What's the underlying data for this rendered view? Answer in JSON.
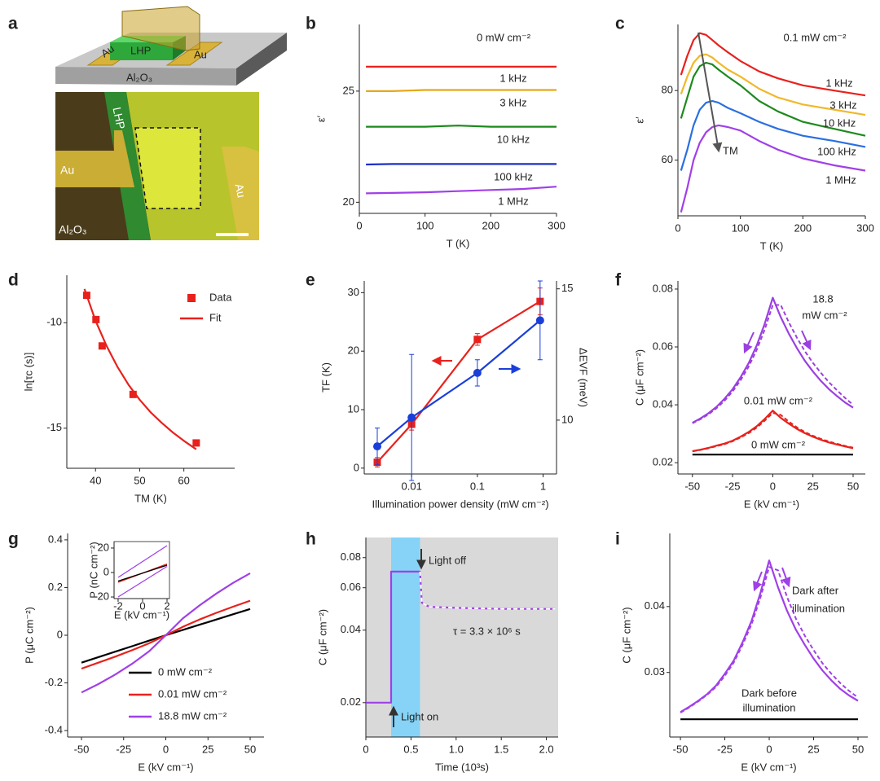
{
  "panel_a": {
    "panel": "a",
    "device_labels": [
      "Au",
      "LHP",
      "Au",
      "Al₂O₃"
    ],
    "micrograph_labels": [
      "LHP",
      "Au",
      "Au",
      "Al₂O₃"
    ]
  },
  "chart_data": [
    {
      "panel": "b",
      "type": "line",
      "xlabel": "T (K)",
      "ylabel": "ε′",
      "xlim": [
        0,
        300
      ],
      "ylim": [
        19.5,
        28
      ],
      "xticks": [
        0,
        100,
        200,
        300
      ],
      "yticks": [
        20,
        25
      ],
      "labels": "inline",
      "annotations": [
        "0 mW cm⁻²"
      ],
      "x": [
        10,
        50,
        100,
        150,
        200,
        250,
        300
      ],
      "series": [
        {
          "name": "1 kHz",
          "color": "#e8211d",
          "values": [
            26.1,
            26.1,
            26.1,
            26.1,
            26.1,
            26.1,
            26.1
          ]
        },
        {
          "name": "3 kHz",
          "color": "#e6a817",
          "values": [
            25.0,
            25.0,
            25.05,
            25.05,
            25.05,
            25.05,
            25.05
          ]
        },
        {
          "name": "10 kHz",
          "color": "#1c8a1c",
          "values": [
            23.4,
            23.4,
            23.4,
            23.45,
            23.4,
            23.4,
            23.4
          ]
        },
        {
          "name": "100 kHz",
          "color": "#1a2fc9",
          "values": [
            21.7,
            21.72,
            21.72,
            21.72,
            21.72,
            21.72,
            21.72
          ]
        },
        {
          "name": "1 MHz",
          "color": "#a040e8",
          "values": [
            20.4,
            20.42,
            20.45,
            20.5,
            20.55,
            20.6,
            20.7
          ]
        }
      ]
    },
    {
      "panel": "c",
      "type": "line",
      "xlabel": "T (K)",
      "ylabel": "ε′",
      "xlim": [
        0,
        300
      ],
      "ylim": [
        44,
        99
      ],
      "xticks": [
        0,
        100,
        200,
        300
      ],
      "yticks": [
        60,
        80
      ],
      "labels": "inline",
      "annotations": [
        "0.1 mW cm⁻²",
        "TM"
      ],
      "x": [
        5,
        15,
        25,
        35,
        45,
        55,
        65,
        80,
        100,
        130,
        160,
        200,
        250,
        300
      ],
      "series": [
        {
          "name": "1 kHz",
          "color": "#e8211d",
          "values": [
            84.5,
            90,
            94.5,
            96.5,
            96,
            94.5,
            93,
            91,
            88.5,
            85.5,
            83.5,
            81.5,
            80,
            78.6
          ]
        },
        {
          "name": "3 kHz",
          "color": "#f0b82a",
          "values": [
            79,
            84,
            88,
            90,
            90.4,
            89.5,
            88,
            86,
            84,
            80.5,
            78,
            76,
            74.5,
            73
          ]
        },
        {
          "name": "10 kHz",
          "color": "#1c8a1c",
          "values": [
            72,
            78,
            84,
            87,
            88,
            87.5,
            86,
            84,
            81.5,
            77,
            74,
            71,
            69,
            67
          ]
        },
        {
          "name": "100 kHz",
          "color": "#2a6fe0",
          "values": [
            57,
            63,
            70,
            74.5,
            76.5,
            77,
            76.5,
            75,
            73.5,
            71,
            69,
            67,
            65.5,
            63.8
          ]
        },
        {
          "name": "1 MHz",
          "color": "#a040e8",
          "values": [
            45,
            52,
            60,
            65,
            68,
            69.5,
            70,
            69.5,
            68.5,
            65.5,
            63,
            60.5,
            58.5,
            57
          ]
        }
      ]
    },
    {
      "panel": "d",
      "type": "line",
      "xlabel": "TM (K)",
      "ylabel": "ln[τc (s)]",
      "xlim": [
        33.5,
        71.5
      ],
      "ylim": [
        -16.9,
        -7.75
      ],
      "xticks": [
        40,
        50,
        60
      ],
      "yticks": [
        -15,
        -10
      ],
      "legend": "upper right",
      "series": [
        {
          "name": "Data",
          "color": "#e8211d",
          "marker": "square",
          "line": false,
          "x": [
            38,
            40.1,
            41.5,
            48.5,
            62.8
          ],
          "values": [
            -8.7,
            -9.85,
            -11.1,
            -13.4,
            -15.7
          ]
        },
        {
          "name": "Fit",
          "color": "#e8211d",
          "x": [
            37.5,
            40,
            42.5,
            45,
            47.5,
            50,
            52.5,
            55,
            57.5,
            60,
            62.8
          ],
          "values": [
            -8.4,
            -9.9,
            -11.1,
            -12.1,
            -12.95,
            -13.65,
            -14.25,
            -14.75,
            -15.2,
            -15.6,
            -16.0
          ]
        }
      ]
    },
    {
      "panel": "e",
      "type": "line",
      "xlabel": "Illumination power density (mW cm⁻²)",
      "ylabel": "TF (K)",
      "y2label": "ΔEVF (meV)",
      "xscale": "log",
      "xlim": [
        0.0019,
        1.6
      ],
      "ylim": [
        -1,
        32
      ],
      "y2lim": [
        7.95,
        15.3
      ],
      "xticks": [
        0.01,
        0.1,
        1
      ],
      "yticks": [
        0,
        10,
        20,
        30
      ],
      "y2ticks": [
        10,
        15
      ],
      "x": [
        0.003,
        0.01,
        0.1,
        0.9
      ],
      "series": [
        {
          "color": "#e8211d",
          "marker": "square",
          "values": [
            1,
            7.5,
            22,
            28.5
          ],
          "errors": [
            0.8,
            1,
            1,
            2.3
          ]
        },
        {
          "color": "#1a3fd9",
          "marker": "circle",
          "axis": "y2",
          "values": [
            9.0,
            10.1,
            11.8,
            13.8
          ],
          "errors": [
            0.7,
            2.4,
            0.5,
            1.5
          ]
        }
      ]
    },
    {
      "panel": "f",
      "type": "line",
      "xlabel": "E (kV cm⁻¹)",
      "ylabel": "C (μF cm⁻²)",
      "xlim": [
        -59,
        57.6
      ],
      "ylim": [
        0.0161,
        0.0828
      ],
      "xticks": [
        -50,
        -25,
        0,
        25,
        50
      ],
      "yticks": [
        0.02,
        0.04,
        0.06,
        0.08
      ],
      "annotations": [
        "18.8",
        "mW cm⁻²",
        "0.01 mW cm⁻²",
        "0 mW cm⁻²"
      ],
      "x": [
        -50,
        -45,
        -40,
        -35,
        -30,
        -25,
        -20,
        -15,
        -10,
        -5,
        0,
        5,
        10,
        15,
        20,
        25,
        30,
        35,
        40,
        45,
        50
      ],
      "series": [
        {
          "color": "#9b3fe0",
          "values": [
            0.0338,
            0.0353,
            0.0371,
            0.0393,
            0.0421,
            0.0454,
            0.0495,
            0.0544,
            0.0605,
            0.068,
            0.077,
            0.0703,
            0.0646,
            0.0596,
            0.0552,
            0.0515,
            0.0482,
            0.0454,
            0.043,
            0.0408,
            0.039
          ]
        },
        {
          "color": "#9b3fe0",
          "style": "dashed",
          "values": [
            0.0336,
            0.035,
            0.0367,
            0.0388,
            0.0414,
            0.0446,
            0.0485,
            0.0532,
            0.059,
            0.066,
            0.0745,
            0.0745,
            0.0685,
            0.0632,
            0.0585,
            0.0545,
            0.051,
            0.0478,
            0.045,
            0.0424,
            0.04
          ]
        },
        {
          "color": "#e8211d",
          "values": [
            0.024,
            0.0245,
            0.0251,
            0.0259,
            0.0266,
            0.0276,
            0.029,
            0.0306,
            0.0326,
            0.0351,
            0.038,
            0.0355,
            0.0335,
            0.0317,
            0.0302,
            0.029,
            0.0279,
            0.027,
            0.0263,
            0.0256,
            0.025
          ]
        },
        {
          "color": "#e8211d",
          "style": "dashed",
          "values": [
            0.0239,
            0.0244,
            0.025,
            0.0257,
            0.0264,
            0.0274,
            0.0287,
            0.0302,
            0.0321,
            0.0345,
            0.0372,
            0.0365,
            0.0342,
            0.0322,
            0.0306,
            0.0293,
            0.0282,
            0.0273,
            0.0265,
            0.0258,
            0.0252
          ]
        },
        {
          "color": "#000000",
          "x": [
            -50,
            50
          ],
          "values": [
            0.0228,
            0.0228
          ]
        }
      ]
    },
    {
      "panel": "g",
      "type": "line",
      "xlabel": "E (kV cm⁻¹)",
      "ylabel": "P (μC cm⁻²)",
      "xlim": [
        -58.2,
        58.2
      ],
      "ylim": [
        -0.427,
        0.427
      ],
      "xticks": [
        -50,
        -25,
        0,
        25,
        50
      ],
      "yticks": [
        -0.4,
        -0.2,
        0,
        0.2,
        0.4
      ],
      "legend": "lower right",
      "x": [
        -50,
        -40,
        -30,
        -20,
        -10,
        0,
        10,
        20,
        30,
        40,
        50
      ],
      "series": [
        {
          "name": "0 mW cm⁻²",
          "color": "#000000",
          "values": [
            -0.115,
            -0.092,
            -0.069,
            -0.046,
            -0.023,
            0,
            0.022,
            0.044,
            0.066,
            0.088,
            0.11
          ]
        },
        {
          "name": "0.01 mW cm⁻²",
          "color": "#e8211d",
          "values": [
            -0.14,
            -0.115,
            -0.09,
            -0.063,
            -0.034,
            0,
            0.035,
            0.066,
            0.094,
            0.12,
            0.145
          ]
        },
        {
          "name": "18.8 mW cm⁻²",
          "color": "#a040e8",
          "values": [
            -0.24,
            -0.205,
            -0.165,
            -0.12,
            -0.068,
            0,
            0.07,
            0.125,
            0.175,
            0.22,
            0.26
          ]
        }
      ]
    },
    {
      "type": "line",
      "xlabel": "E (kV cm⁻¹)",
      "ylabel": "P (nC cm⁻²)",
      "xlim": [
        -2.33,
        2.2
      ],
      "ylim": [
        -21.3,
        25.3
      ],
      "xticks": [
        -2,
        0,
        2
      ],
      "yticks": [
        -20,
        0,
        20
      ],
      "x": [
        -2,
        2
      ],
      "series": [
        {
          "color": "#a040e8",
          "values": [
            -4,
            22
          ]
        },
        {
          "color": "#a040e8",
          "values": [
            -20,
            5
          ]
        },
        {
          "color": "#e8211d",
          "values": [
            -8,
            7
          ]
        },
        {
          "color": "#000000",
          "values": [
            -7,
            6
          ]
        }
      ]
    },
    {
      "panel": "h",
      "type": "line",
      "xlabel": "Time (10³s)",
      "ylabel": "C (μF cm⁻²)",
      "yscale": "log",
      "xlim": [
        0,
        2.13
      ],
      "ylim": [
        0.0144,
        0.097
      ],
      "xticks": [
        0,
        0.5,
        {
          "value": 1,
          "label": "1.0"
        },
        1.5,
        {
          "value": 2,
          "label": "2.0"
        }
      ],
      "yticks": [
        0.02,
        0.04,
        0.06,
        0.08
      ],
      "background": "#d9d9d9",
      "span": [
        0.28,
        0.6
      ],
      "span_color": "#86d3f7",
      "annotations": [
        "Light off",
        "Light on",
        "τ = 3.3 × 10⁶ s"
      ],
      "series": [
        {
          "color": "#a040e8",
          "x": [
            0,
            0.28,
            0.28,
            0.6,
            0.62,
            0.7,
            1.0,
            1.5,
            2.1
          ],
          "values": [
            0.02,
            0.02,
            0.07,
            0.07,
            0.052,
            0.05,
            0.0495,
            0.049,
            0.049
          ]
        },
        {
          "color": "#ffffff",
          "style": "dashed",
          "x": [
            0.6,
            0.62,
            0.7,
            1.0,
            1.5,
            2.1
          ],
          "values": [
            0.07,
            0.052,
            0.05,
            0.0495,
            0.049,
            0.049
          ]
        }
      ]
    },
    {
      "panel": "i",
      "type": "line",
      "xlabel": "E (kV cm⁻¹)",
      "ylabel": "C (μF cm⁻²)",
      "xlim": [
        -56,
        55.5
      ],
      "ylim": [
        0.0202,
        0.0511
      ],
      "xticks": [
        -50,
        -25,
        0,
        25,
        50
      ],
      "yticks": [
        0.03,
        0.04
      ],
      "annotations": [
        "Dark after",
        "illumination",
        "Dark before",
        "illumination"
      ],
      "x": [
        -50,
        -45,
        -40,
        -35,
        -30,
        -25,
        -20,
        -15,
        -10,
        -5,
        0,
        5,
        10,
        15,
        20,
        25,
        30,
        35,
        40,
        45,
        50
      ],
      "series": [
        {
          "color": "#a040e8",
          "values": [
            0.024,
            0.0248,
            0.0257,
            0.0267,
            0.028,
            0.0298,
            0.0318,
            0.0346,
            0.0378,
            0.042,
            0.047,
            0.0429,
            0.0394,
            0.0365,
            0.0342,
            0.0321,
            0.0303,
            0.0288,
            0.0275,
            0.0265,
            0.0257
          ]
        },
        {
          "color": "#a040e8",
          "style": "dashed",
          "values": [
            0.0239,
            0.0247,
            0.0256,
            0.0266,
            0.0278,
            0.0295,
            0.0315,
            0.0342,
            0.0373,
            0.0413,
            0.046,
            0.0455,
            0.0415,
            0.0382,
            0.0356,
            0.0334,
            0.0314,
            0.0298,
            0.0284,
            0.0272,
            0.0262
          ]
        },
        {
          "color": "#000000",
          "x": [
            -50,
            50
          ],
          "values": [
            0.0229,
            0.0229
          ]
        }
      ]
    }
  ]
}
